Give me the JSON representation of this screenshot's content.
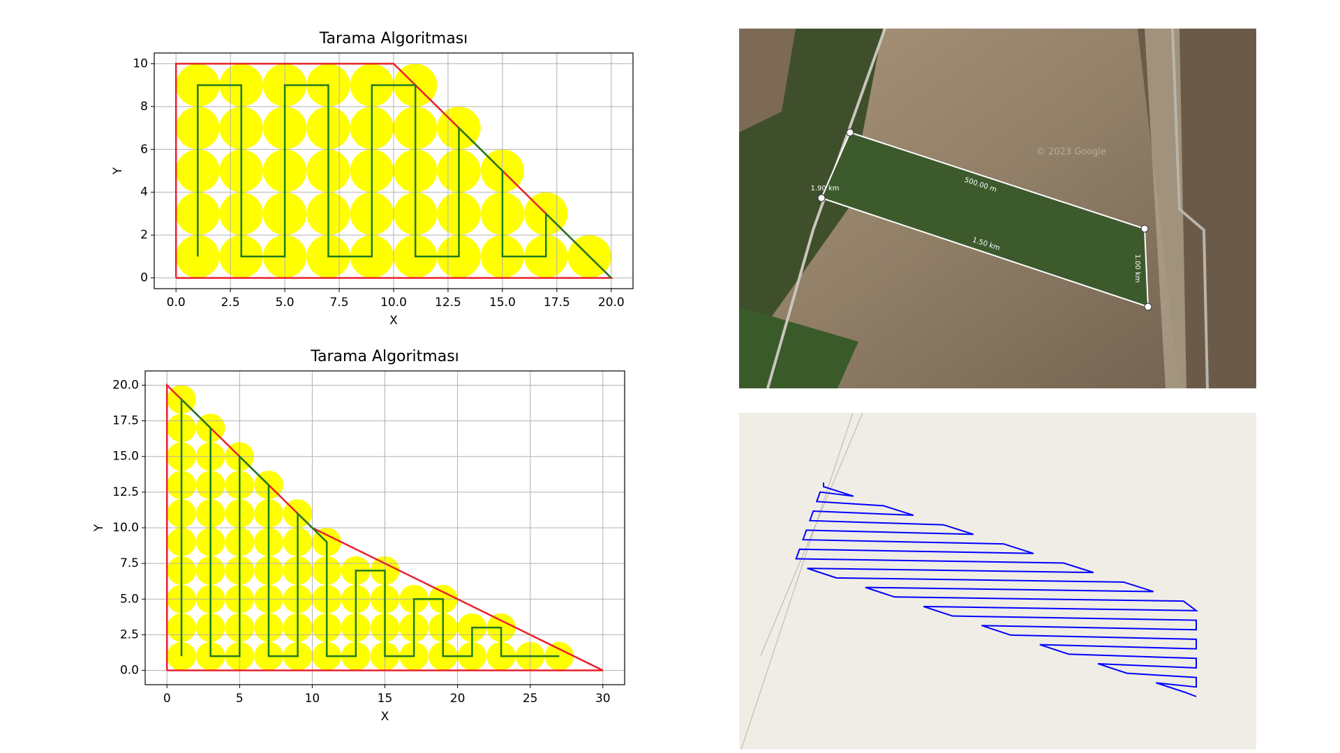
{
  "chart_data": [
    {
      "type": "coverage",
      "title": "Tarama Algoritması",
      "x_label": "X",
      "y_label": "Y",
      "xlim": [
        -1,
        21
      ],
      "ylim": [
        -0.5,
        10.5
      ],
      "grid": true,
      "xticks": [
        {
          "value": 0,
          "label": "0.0"
        },
        2.5,
        {
          "value": 5,
          "label": "5.0"
        },
        7.5,
        {
          "value": 10,
          "label": "10.0"
        },
        12.5,
        {
          "value": 15,
          "label": "15.0"
        },
        17.5,
        {
          "value": 20,
          "label": "20.0"
        }
      ],
      "yticks": [
        0,
        2,
        4,
        6,
        8,
        10
      ],
      "circles": {
        "color": "#ffff00",
        "radius": 1,
        "columns": [
          {
            "x": 1,
            "y": [
              1,
              3,
              5,
              7,
              9
            ]
          },
          {
            "x": 3,
            "y": [
              1,
              3,
              5,
              7,
              9
            ]
          },
          {
            "x": 5,
            "y": [
              1,
              3,
              5,
              7,
              9
            ]
          },
          {
            "x": 7,
            "y": [
              1,
              3,
              5,
              7,
              9
            ]
          },
          {
            "x": 9,
            "y": [
              1,
              3,
              5,
              7,
              9
            ]
          },
          {
            "x": 11,
            "y": [
              1,
              3,
              5,
              7,
              9
            ]
          },
          {
            "x": 13,
            "y": [
              1,
              3,
              5,
              7
            ]
          },
          {
            "x": 15,
            "y": [
              1,
              3,
              5
            ]
          },
          {
            "x": 17,
            "y": [
              1,
              3
            ]
          },
          {
            "x": 19,
            "y": [
              1
            ]
          }
        ]
      },
      "boundary": {
        "color": "#e8202a",
        "x": [
          0,
          0,
          10,
          20,
          0
        ],
        "y": [
          0,
          10,
          10,
          0,
          0
        ]
      },
      "path": {
        "color": "#1e7a1e",
        "x": [
          1,
          1,
          3,
          3,
          5,
          5,
          7,
          7,
          9,
          9,
          11,
          11,
          13,
          13,
          15,
          15,
          17,
          17,
          20
        ],
        "y": [
          1,
          9,
          9,
          1,
          1,
          9,
          9,
          1,
          1,
          9,
          9,
          1,
          1,
          7,
          5,
          1,
          1,
          3,
          0
        ]
      }
    },
    {
      "type": "coverage",
      "title": "Tarama Algoritması",
      "x_label": "X",
      "y_label": "Y",
      "xlim": [
        -1.5,
        31.5
      ],
      "ylim": [
        -1,
        21
      ],
      "grid": true,
      "xticks": [
        0,
        5,
        10,
        15,
        20,
        25,
        30
      ],
      "yticks": [
        {
          "value": 0,
          "label": "0.0"
        },
        2.5,
        {
          "value": 5,
          "label": "5.0"
        },
        7.5,
        {
          "value": 10,
          "label": "10.0"
        },
        12.5,
        {
          "value": 15,
          "label": "15.0"
        },
        17.5,
        {
          "value": 20,
          "label": "20.0"
        }
      ],
      "circles": {
        "color": "#ffff00",
        "radius": 1,
        "columns": [
          {
            "x": 1,
            "y": [
              1,
              3,
              5,
              7,
              9,
              11,
              13,
              15,
              17,
              19
            ]
          },
          {
            "x": 3,
            "y": [
              1,
              3,
              5,
              7,
              9,
              11,
              13,
              15,
              17
            ]
          },
          {
            "x": 5,
            "y": [
              1,
              3,
              5,
              7,
              9,
              11,
              13,
              15
            ]
          },
          {
            "x": 7,
            "y": [
              1,
              3,
              5,
              7,
              9,
              11,
              13
            ]
          },
          {
            "x": 9,
            "y": [
              1,
              3,
              5,
              7,
              9,
              11
            ]
          },
          {
            "x": 11,
            "y": [
              1,
              3,
              5,
              7,
              9
            ]
          },
          {
            "x": 13,
            "y": [
              1,
              3,
              5,
              7
            ]
          },
          {
            "x": 15,
            "y": [
              1,
              3,
              5,
              7
            ]
          },
          {
            "x": 17,
            "y": [
              1,
              3,
              5
            ]
          },
          {
            "x": 19,
            "y": [
              1,
              3,
              5
            ]
          },
          {
            "x": 21,
            "y": [
              1,
              3
            ]
          },
          {
            "x": 23,
            "y": [
              1,
              3
            ]
          },
          {
            "x": 25,
            "y": [
              1
            ]
          },
          {
            "x": 27,
            "y": [
              1
            ]
          }
        ]
      },
      "boundary": {
        "color": "#e8202a",
        "x": [
          0,
          0,
          10,
          30,
          0
        ],
        "y": [
          0,
          20,
          10,
          0,
          0
        ]
      },
      "path": {
        "color": "#1e7a1e",
        "x": [
          1,
          1,
          3,
          3,
          5,
          5,
          7,
          7,
          9,
          9,
          11,
          11,
          13,
          13,
          15,
          15,
          17,
          17,
          19,
          19,
          21,
          21,
          23,
          23,
          27
        ],
        "y": [
          1,
          19,
          17,
          1,
          1,
          15,
          13,
          1,
          1,
          11,
          9,
          1,
          1,
          7,
          7,
          1,
          1,
          5,
          5,
          1,
          1,
          3,
          3,
          1,
          1
        ]
      }
    }
  ],
  "satellite": {
    "labels": [
      "500.00 m",
      "1.50 km",
      "1.00 km",
      "1.90 km"
    ],
    "credit": "© 2023 Google"
  }
}
